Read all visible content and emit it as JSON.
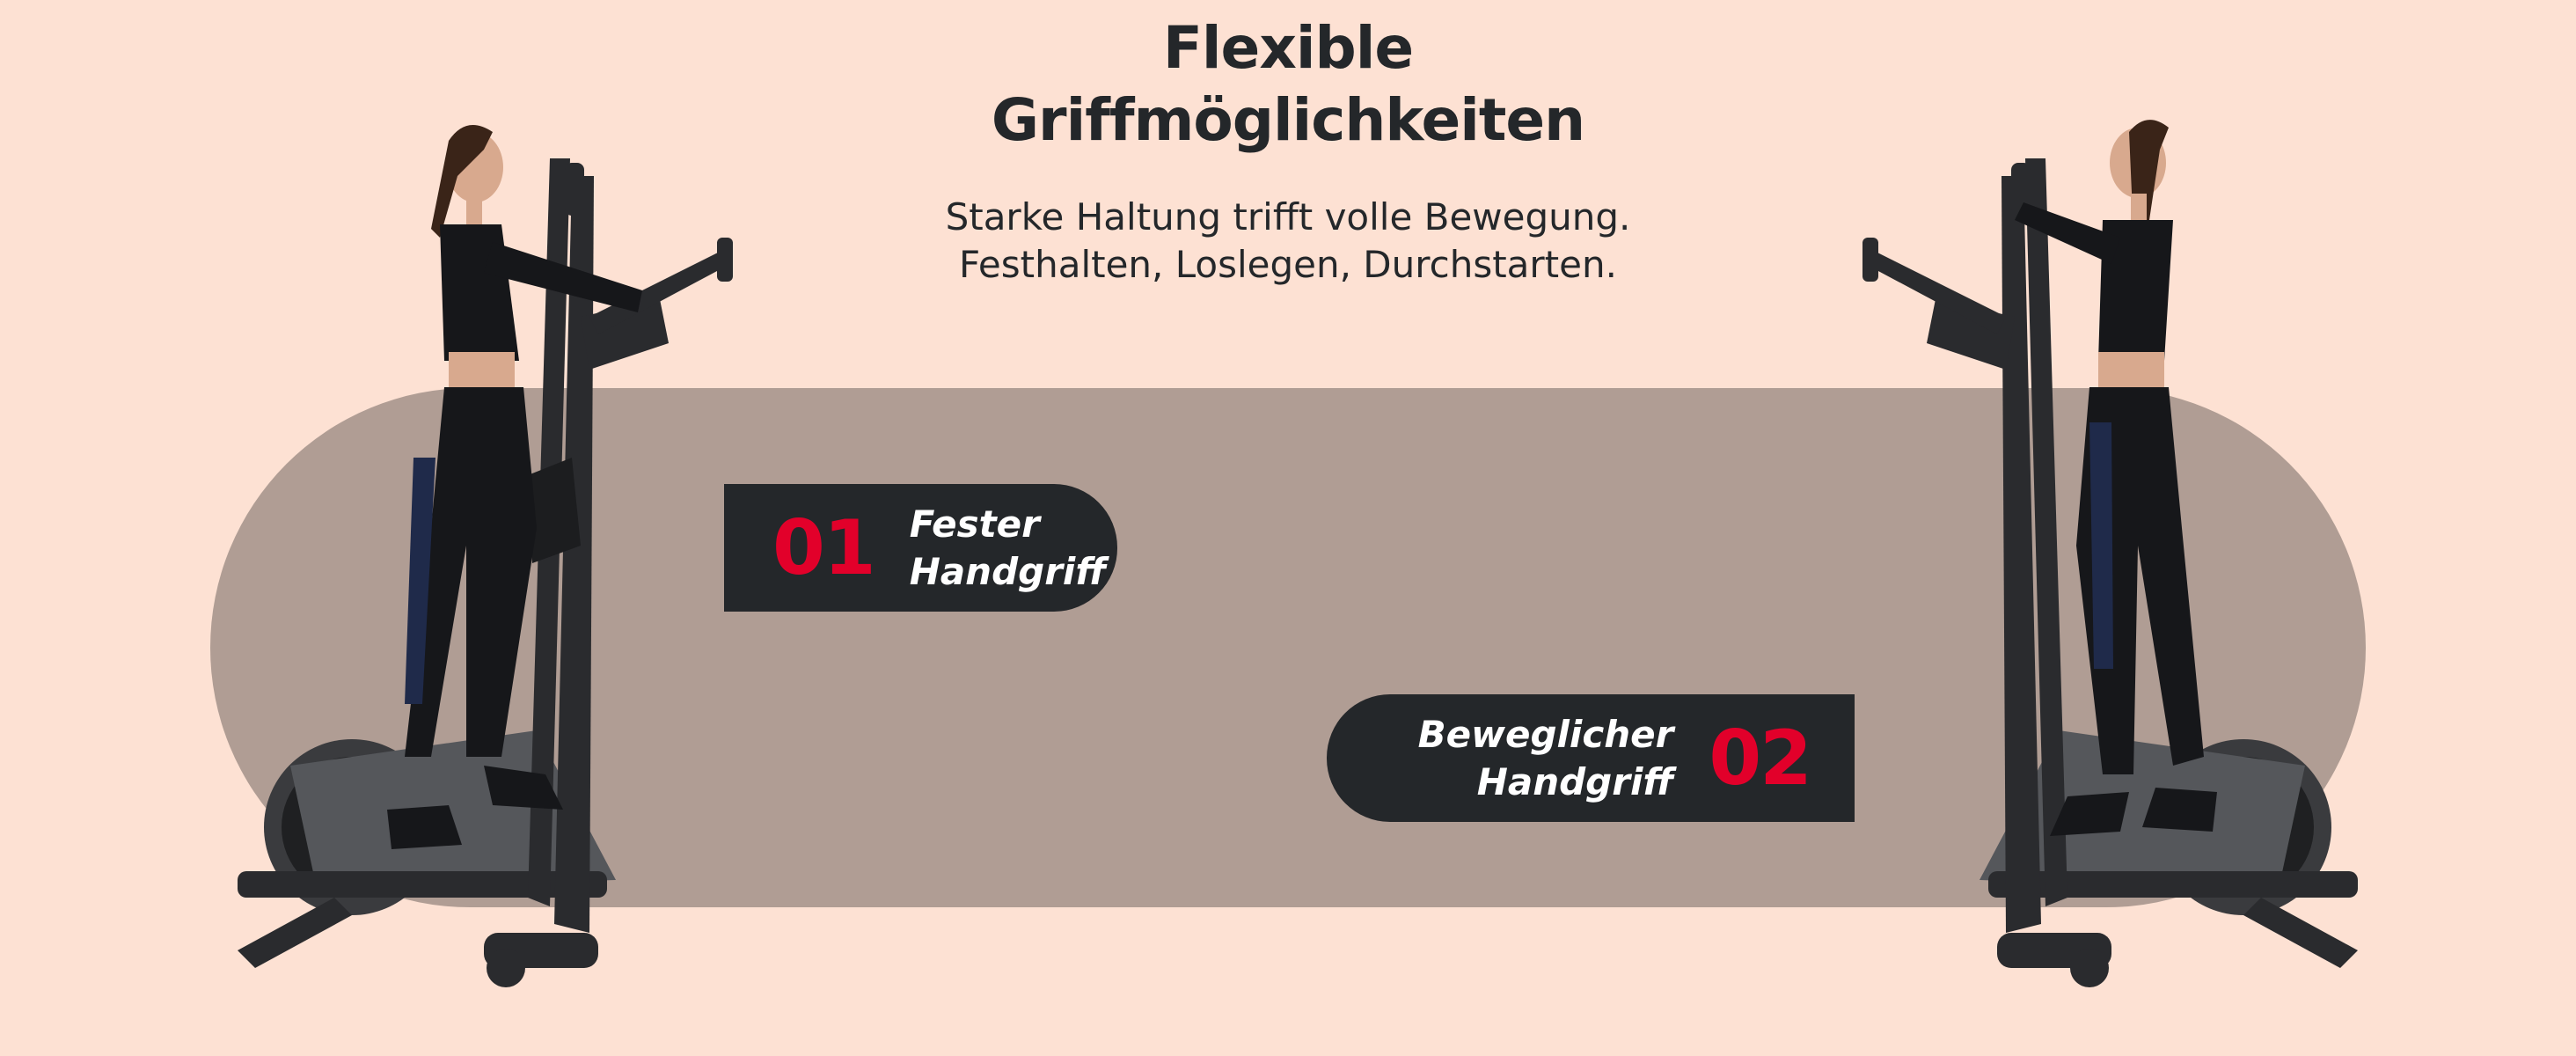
{
  "header": {
    "title_line1": "Flexible",
    "title_line2": "Griffmöglichkeiten",
    "subtitle_line1": "Starke Haltung trifft volle Bewegung.",
    "subtitle_line2": "Festhalten, Loslegen, Durchstarten."
  },
  "features": [
    {
      "number": "01",
      "label_line1": "Fester",
      "label_line2": "Handgriff"
    },
    {
      "number": "02",
      "label_line1": "Beweglicher",
      "label_line2": "Handgriff"
    }
  ],
  "colors": {
    "background": "#fde1d3",
    "pill": "#b09d94",
    "badge": "#24272a",
    "accent": "#e2002a"
  }
}
